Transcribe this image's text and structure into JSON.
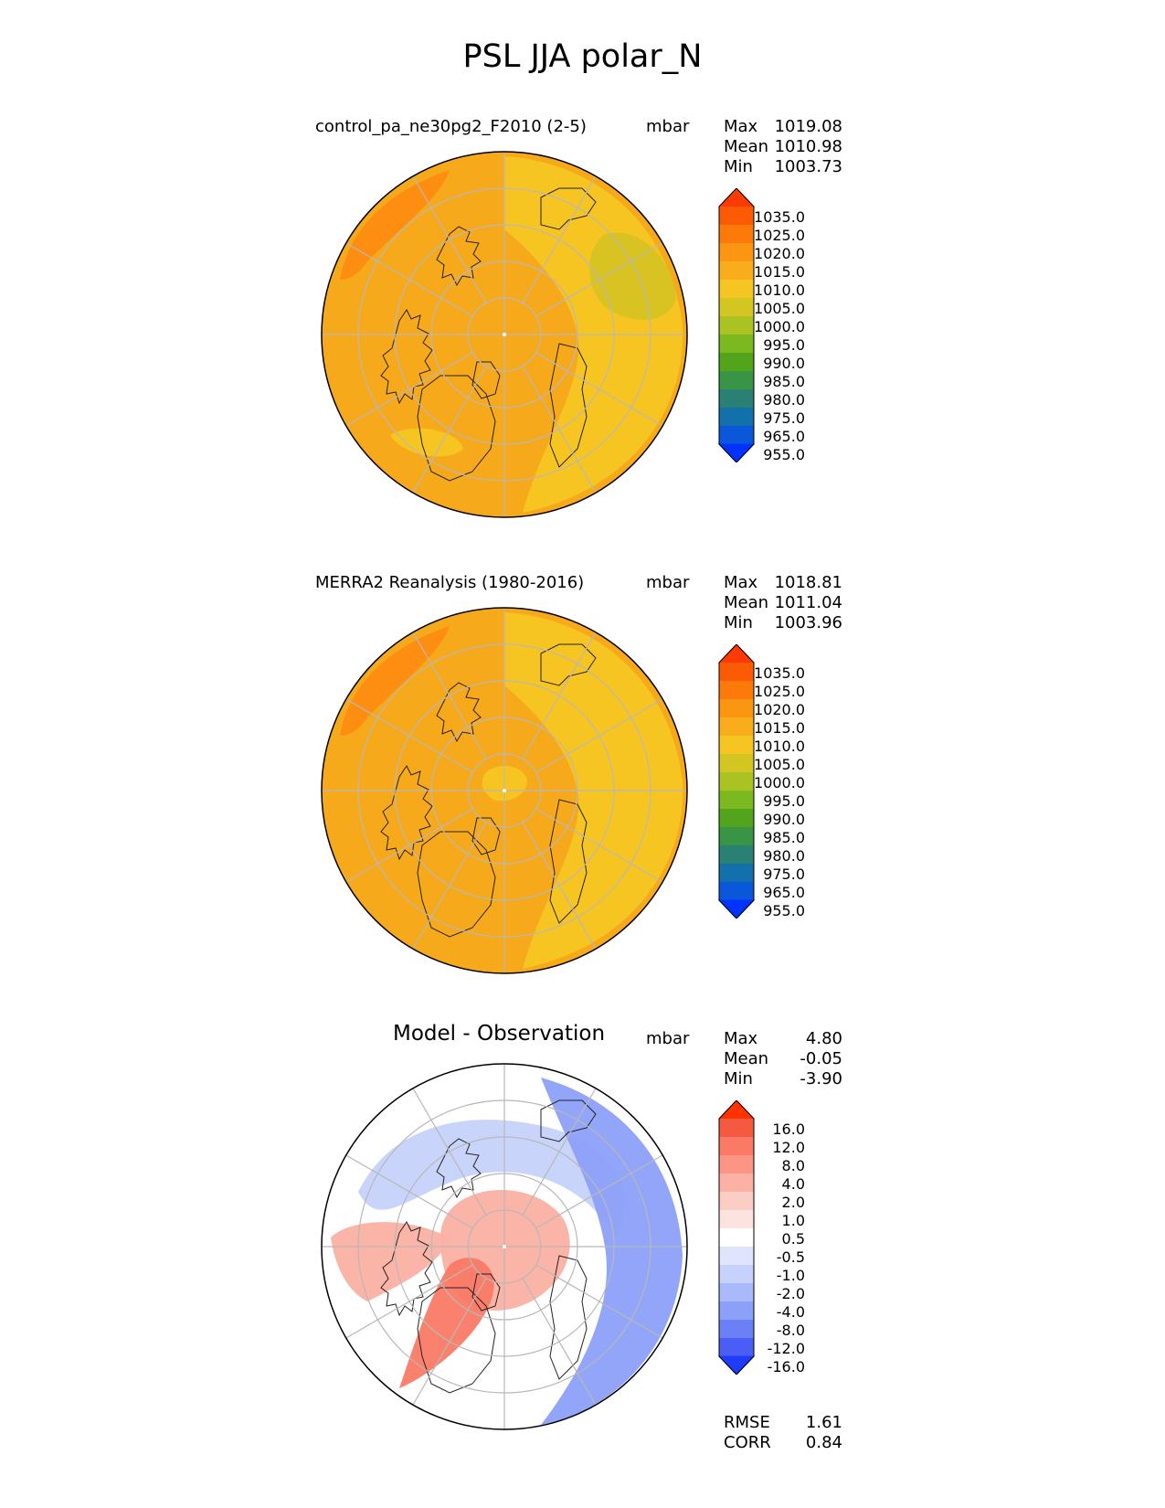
{
  "figure": {
    "title": "PSL JJA polar_N"
  },
  "panels": [
    {
      "title": "control_pa_ne30pg2_F2010 (2-5)",
      "units": "mbar",
      "stats": [
        {
          "label": "Max",
          "value": "1019.08"
        },
        {
          "label": "Mean",
          "value": "1010.98"
        },
        {
          "label": "Min",
          "value": "1003.73"
        }
      ],
      "base_color": "#f7a91c",
      "colorbar": "abs"
    },
    {
      "title": "MERRA2 Reanalysis (1980-2016)",
      "units": "mbar",
      "stats": [
        {
          "label": "Max",
          "value": "1018.81"
        },
        {
          "label": "Mean",
          "value": "1011.04"
        },
        {
          "label": "Min",
          "value": "1003.96"
        }
      ],
      "base_color": "#f7a91c",
      "colorbar": "abs"
    },
    {
      "title": "Model - Observation",
      "units": "mbar",
      "stats": [
        {
          "label": "Max",
          "value": "4.80"
        },
        {
          "label": "Mean",
          "value": "-0.05"
        },
        {
          "label": "Min",
          "value": "-3.90"
        }
      ],
      "base_color": "#ffffff",
      "colorbar": "diff",
      "metrics": [
        {
          "label": "RMSE",
          "value": "1.61"
        },
        {
          "label": "CORR",
          "value": "0.84"
        }
      ]
    }
  ],
  "colorbars": {
    "abs": {
      "labels": [
        "1035.0",
        "1025.0",
        "1020.0",
        "1015.0",
        "1010.0",
        "1005.0",
        "1000.0",
        "995.0",
        "990.0",
        "985.0",
        "980.0",
        "975.0",
        "965.0",
        "955.0"
      ],
      "colors": [
        "#fe3a03",
        "#fd5a05",
        "#fd7a0a",
        "#fb9613",
        "#f9ac1c",
        "#f5c524",
        "#d4c622",
        "#abc223",
        "#7cb81f",
        "#52a41b",
        "#399445",
        "#298073",
        "#1270ab",
        "#0a57d9",
        "#0034fe"
      ]
    },
    "diff": {
      "labels": [
        "16.0",
        "12.0",
        "8.0",
        "4.0",
        "2.0",
        "1.0",
        "0.5",
        "-0.5",
        "-1.0",
        "-2.0",
        "-4.0",
        "-8.0",
        "-12.0",
        "-16.0"
      ],
      "colors": [
        "#ff3204",
        "#f45a40",
        "#fa7a66",
        "#fc9583",
        "#fbb1a3",
        "#fccdc4",
        "#fde3df",
        "#ffffff",
        "#dfe5fb",
        "#c6d2fb",
        "#aab9fa",
        "#8da0f8",
        "#6b80f5",
        "#4a5ef5",
        "#1f3cf9"
      ]
    }
  },
  "fields": {
    "panel0": [
      {
        "color": "#f7c623",
        "shape": "east"
      },
      {
        "color": "#d6c323",
        "shape": "eastpatch"
      },
      {
        "color": "#fd8c12",
        "shape": "nw"
      },
      {
        "color": "#f7c623",
        "shape": "sbean"
      }
    ],
    "panel1": [
      {
        "color": "#f7c623",
        "shape": "east"
      },
      {
        "color": "#fd8c12",
        "shape": "nw"
      },
      {
        "color": "#f7c623",
        "shape": "polepatch"
      }
    ],
    "panel2": [
      {
        "color": "#c6d2fb",
        "shape": "ring"
      },
      {
        "color": "#8da0f8",
        "shape": "eastband"
      },
      {
        "color": "#fbb1a3",
        "shape": "center"
      },
      {
        "color": "#fa7a66",
        "shape": "greenland"
      },
      {
        "color": "#fbb1a3",
        "shape": "west"
      }
    ]
  }
}
